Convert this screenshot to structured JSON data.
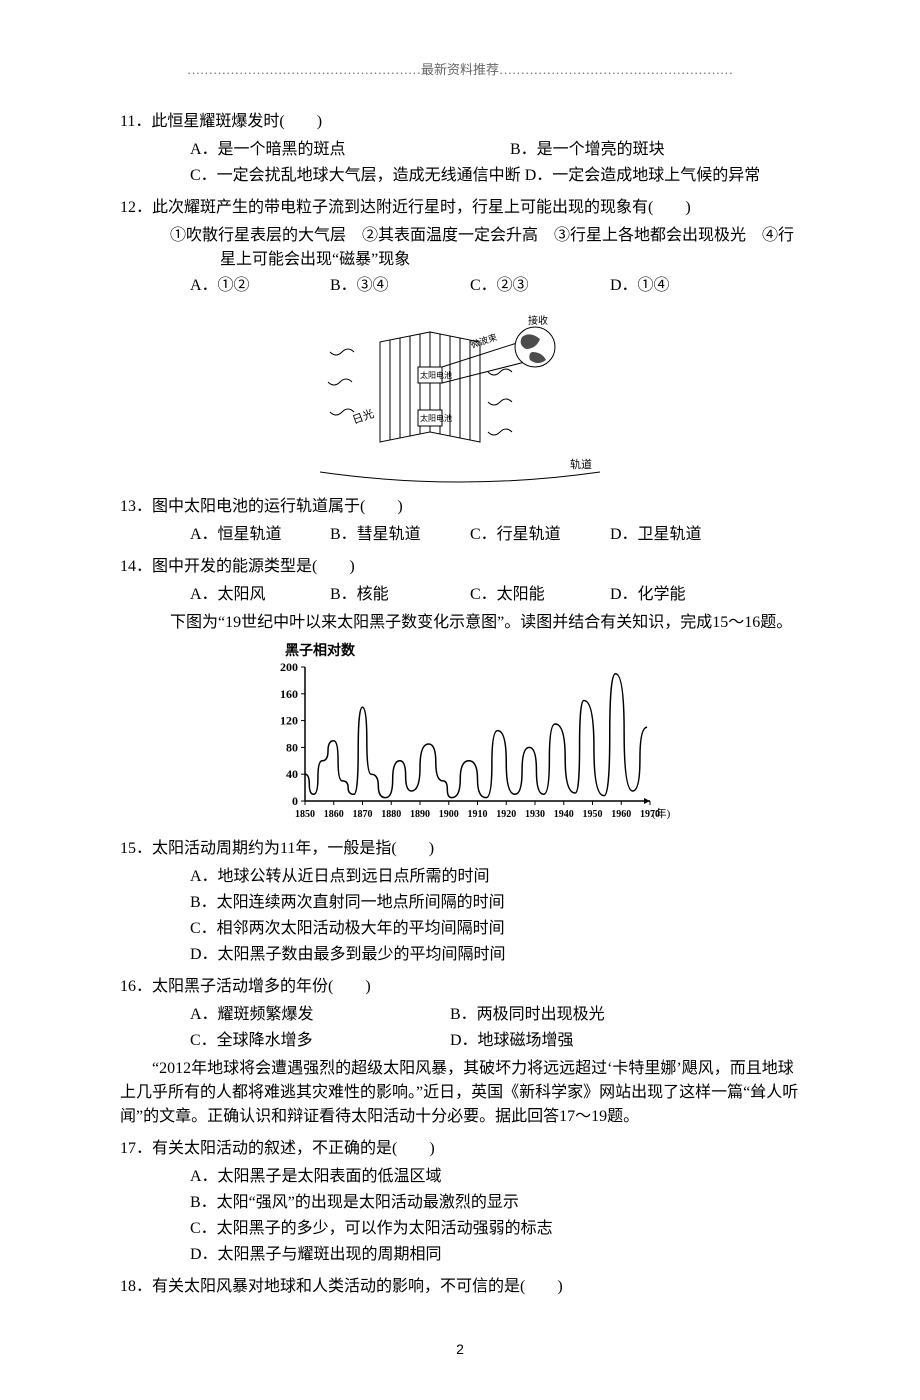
{
  "header": "………………………………………………最新资料推荐………………………………………………",
  "page_number": "2",
  "q11": {
    "stem": "11．此恒星耀斑爆发时(　　)",
    "A": "A．是一个暗黑的斑点",
    "B": "B．是一个增亮的斑块",
    "C": "C．一定会扰乱地球大气层，造成无线通信中断",
    "D": "D．一定会造成地球上气候的异常"
  },
  "q12": {
    "stem": "12．此次耀斑产生的带电粒子流到达附近行星时，行星上可能出现的现象有(　　)",
    "line2": "①吹散行星表层的大气层　②其表面温度一定会升高　③行星上各地都会出现极光　④行星上可能会出现“磁暴”现象",
    "A": "A．①②",
    "B": "B．③④",
    "C": "C．②③",
    "D": "D．①④"
  },
  "fig1": {
    "labels": {
      "jieshow": "接收",
      "weiboshu": "微波束",
      "taiyangdianchi1": "太阳电池",
      "taiyangdianchi2": "太阳电池",
      "riguang": "日光",
      "guidao": "轨道"
    },
    "colors": {
      "stroke": "#000000",
      "fill": "#ffffff",
      "text": "#000000"
    }
  },
  "q13": {
    "stem": "13．图中太阳电池的运行轨道属于(　　)",
    "A": "A．恒星轨道",
    "B": "B．彗星轨道",
    "C": "C．行星轨道",
    "D": "D．卫星轨道"
  },
  "q14": {
    "stem": "14．图中开发的能源类型是(　　)",
    "A": "A．太阳风",
    "B": "B．核能",
    "C": "C．太阳能",
    "D": "D．化学能"
  },
  "intro15": "下图为“19世纪中叶以来太阳黑子数变化示意图”。读图并结合有关知识，完成15～16题。",
  "chart": {
    "type": "line",
    "title": "黑子相对数",
    "title_fontsize": 14,
    "ylim": [
      0,
      200
    ],
    "yticks": [
      0,
      40,
      80,
      120,
      160,
      200
    ],
    "x_start": 1850,
    "x_end": 1970,
    "xticks": [
      1850,
      1860,
      1870,
      1880,
      1890,
      1900,
      1910,
      1920,
      1930,
      1940,
      1950,
      1960,
      1970
    ],
    "x_unit": "(年)",
    "series": {
      "years": [
        1850,
        1853,
        1856,
        1860,
        1863,
        1867,
        1870,
        1873,
        1878,
        1883,
        1887,
        1893,
        1898,
        1901,
        1907,
        1913,
        1917,
        1923,
        1928,
        1933,
        1937,
        1944,
        1947,
        1954,
        1958,
        1964,
        1969
      ],
      "values": [
        40,
        10,
        60,
        90,
        30,
        10,
        140,
        40,
        5,
        60,
        15,
        85,
        30,
        5,
        60,
        5,
        105,
        10,
        80,
        10,
        115,
        12,
        150,
        8,
        190,
        15,
        110
      ]
    },
    "colors": {
      "line": "#000000",
      "axis": "#000000",
      "text": "#000000",
      "bg": "#ffffff"
    },
    "line_width": 1.5
  },
  "q15": {
    "stem": "15．太阳活动周期约为11年，一般是指(　　)",
    "A": "A．地球公转从近日点到远日点所需的时间",
    "B": "B．太阳连续两次直射同一地点所间隔的时间",
    "C": "C．相邻两次太阳活动极大年的平均间隔时间",
    "D": "D．太阳黑子数由最多到最少的平均间隔时间"
  },
  "q16": {
    "stem": "16．太阳黑子活动增多的年份(　　)",
    "A": "A．耀斑频繁爆发",
    "B": "B．两极同时出现极光",
    "C": "C．全球降水增多",
    "D": "D．地球磁场增强"
  },
  "intro17": "“2012年地球将会遭遇强烈的超级太阳风暴，其破坏力将远远超过‘卡特里娜’飓风，而且地球上几乎所有的人都将难逃其灾难性的影响。”近日，英国《新科学家》网站出现了这样一篇“耸人听闻”的文章。正确认识和辩证看待太阳活动十分必要。据此回答17～19题。",
  "q17": {
    "stem": "17．有关太阳活动的叙述，不正确的是(　　)",
    "A": "A．太阳黑子是太阳表面的低温区域",
    "B": "B．太阳“强风”的出现是太阳活动最激烈的显示",
    "C": "C．太阳黑子的多少，可以作为太阳活动强弱的标志",
    "D": "D．太阳黑子与耀斑出现的周期相同"
  },
  "q18": {
    "stem": "18．有关太阳风暴对地球和人类活动的影响，不可信的是(　　)"
  }
}
